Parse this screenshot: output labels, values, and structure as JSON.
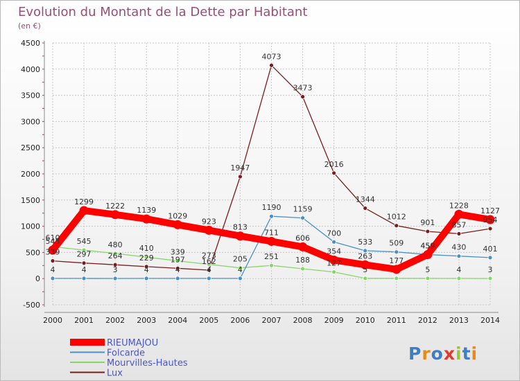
{
  "chart_data": {
    "type": "line",
    "title": "Evolution du Montant de la Dette par Habitant",
    "subtitle": "(en €)",
    "xlabel": "",
    "ylabel": "",
    "categories": [
      "2000",
      "2001",
      "2002",
      "2003",
      "2004",
      "2005",
      "2006",
      "2007",
      "2008",
      "2009",
      "2010",
      "2011",
      "2012",
      "2013",
      "2014"
    ],
    "ylim": [
      -500,
      4500
    ],
    "yticks": [
      -500,
      0,
      500,
      1000,
      1500,
      2000,
      2500,
      3000,
      3500,
      4000,
      4500
    ],
    "grid": true,
    "legend_position": "bottom-left",
    "series": [
      {
        "name": "RIEUMAJOU",
        "color": "#ff0000",
        "values": [
          545,
          1299,
          1222,
          1139,
          1029,
          923,
          813,
          711,
          606,
          354,
          263,
          177,
          459,
          1228,
          1127
        ],
        "labels": [
          "545",
          "1299",
          "1222",
          "1139",
          "1029",
          "923",
          "813",
          "711",
          "606",
          "354",
          "263",
          "177",
          "459",
          "1228",
          "1127"
        ]
      },
      {
        "name": "Folcarde",
        "color": "#4a90c8",
        "values": [
          4,
          4,
          3,
          4,
          4,
          4,
          4,
          1190,
          1159,
          700,
          533,
          509,
          459,
          430,
          401
        ],
        "labels": [
          "4",
          "4",
          "3",
          "4",
          "4",
          "4",
          "4",
          "1190",
          "1159",
          "700",
          "533",
          "509",
          "459",
          "430",
          "401"
        ]
      },
      {
        "name": "Mourvilles-Hautes",
        "color": "#86d866",
        "values": [
          610,
          545,
          480,
          410,
          339,
          273,
          205,
          251,
          188,
          127,
          5,
          5,
          5,
          4,
          3
        ],
        "labels": [
          "610",
          "545",
          "480",
          "410",
          "339",
          "273",
          "205",
          "251",
          "188",
          "127",
          "5",
          "",
          "5",
          "4",
          "3"
        ]
      },
      {
        "name": "Lux",
        "color": "#7a1c1c",
        "values": [
          339,
          297,
          264,
          229,
          197,
          162,
          1947,
          4073,
          3473,
          2016,
          1344,
          1012,
          901,
          857,
          954
        ],
        "labels": [
          "339",
          "297",
          "264",
          "229",
          "197",
          "162",
          "1947",
          "4073",
          "3473",
          "2016",
          "1344",
          "1012",
          "901",
          "857",
          "954"
        ]
      }
    ]
  },
  "logo_text": "Proxiti"
}
